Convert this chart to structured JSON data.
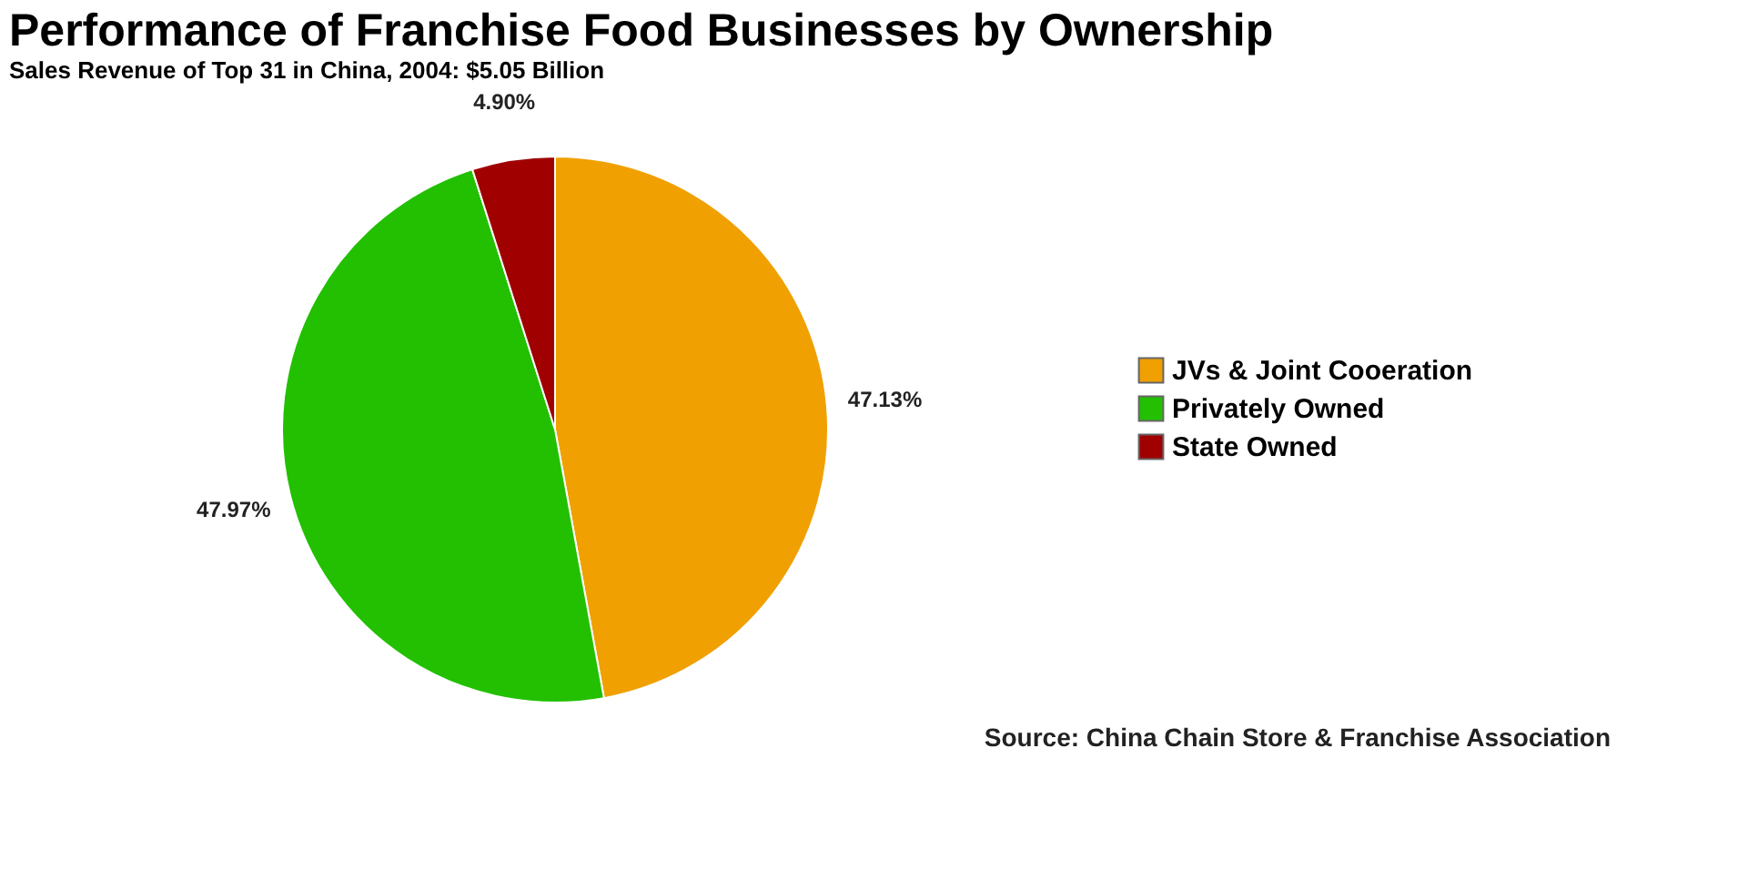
{
  "chart_data": {
    "type": "pie",
    "title": "Performance of Franchise Food Businesses by Ownership",
    "subtitle": "Sales Revenue of Top 31 in China, 2004: $5.05 Billion",
    "categories": [
      "JVs & Joint Cooeration",
      "Privately Owned",
      "State Owned"
    ],
    "values": [
      47.13,
      47.97,
      4.9
    ],
    "colors": [
      "#f0a000",
      "#22c000",
      "#a00000"
    ],
    "value_labels": [
      "47.13%",
      "47.97%",
      "4.90%"
    ],
    "legend": "right",
    "annotations": [
      "Source: China Chain Store & Franchise Association"
    ]
  }
}
